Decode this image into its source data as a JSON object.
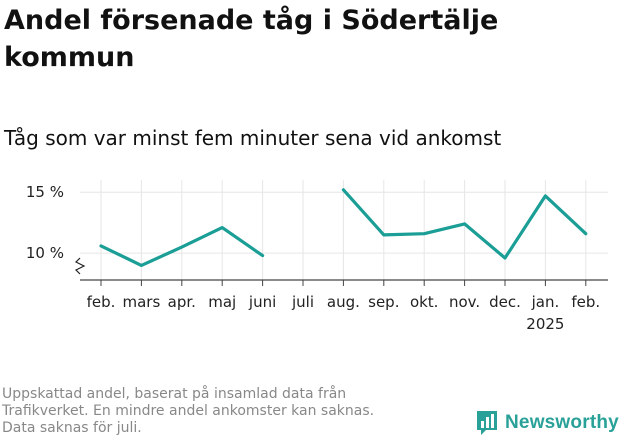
{
  "chart_data": {
    "type": "line",
    "title": "Andel försenade tåg i Södertälje kommun",
    "subtitle": "Tåg som var minst fem minuter sena vid ankomst",
    "xlabel": "",
    "ylabel": "",
    "categories": [
      "feb.",
      "mars",
      "apr.",
      "maj",
      "juni",
      "juli",
      "aug.",
      "sep.",
      "okt.",
      "nov.",
      "dec.",
      "jan.",
      "feb."
    ],
    "year_label": "2025",
    "year_label_category_index": 11,
    "series": [
      {
        "values": [
          10.6,
          9.0,
          10.5,
          12.1,
          9.8,
          null,
          15.2,
          11.5,
          11.6,
          12.4,
          9.6,
          14.7,
          11.6
        ]
      }
    ],
    "yticks": [
      {
        "value": 10,
        "label": "10 %"
      },
      {
        "value": 15,
        "label": "15 %"
      }
    ],
    "ylim": [
      7.8,
      16.0
    ],
    "y_axis_break": true,
    "grid": true,
    "line_color": "#1a9e96"
  },
  "footnote": {
    "lines": [
      "Uppskattad andel, baserat på insamlad data från",
      "Trafikverket. En mindre andel ankomster kan saknas.",
      "Data saknas för juli."
    ]
  },
  "brand": {
    "name": "Newsworthy",
    "icon": "bar-chart-chat-icon",
    "color": "#2aa198"
  }
}
